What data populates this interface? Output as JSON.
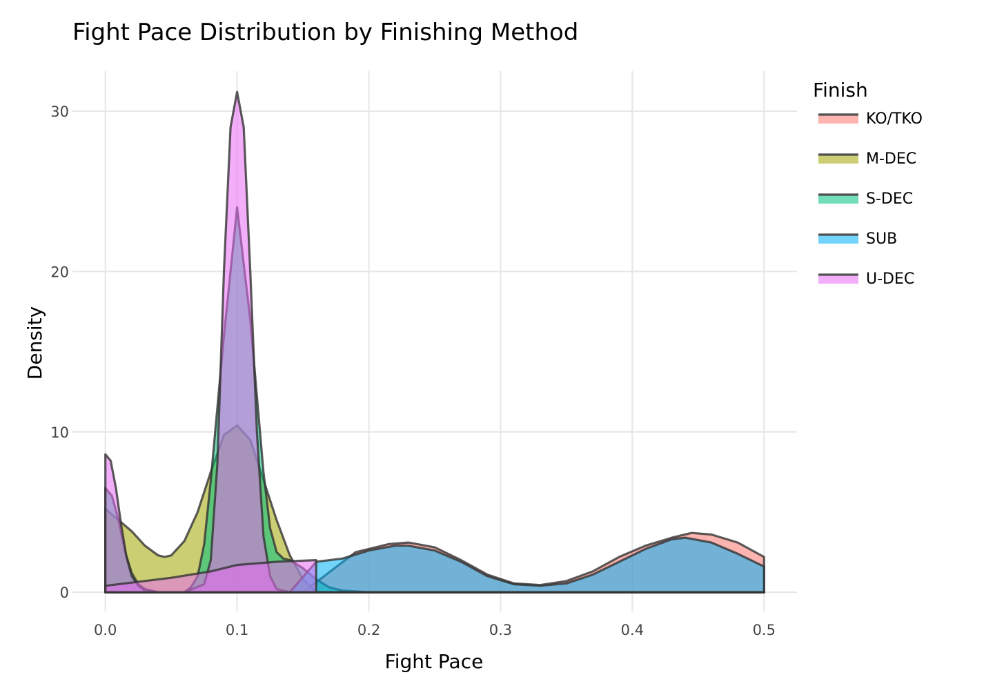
{
  "chart_data": {
    "type": "area",
    "title": "Fight Pace Distribution by Finishing Method",
    "xlabel": "Fight Pace",
    "ylabel": "Density",
    "xlim": [
      -0.025,
      0.525
    ],
    "ylim": [
      -1.2,
      32.5
    ],
    "x_ticks": [
      0,
      0.1,
      0.2,
      0.3,
      0.4,
      0.5
    ],
    "x_tick_labels": [
      "0.0",
      "0.1",
      "0.2",
      "0.3",
      "0.4",
      "0.5"
    ],
    "y_ticks": [
      0,
      10,
      20,
      30
    ],
    "y_tick_labels": [
      "0",
      "10",
      "20",
      "30"
    ],
    "grid": true,
    "legend": {
      "title": "Finish",
      "position": "right"
    },
    "series": [
      {
        "name": "KO/TKO",
        "color": "#F8766D",
        "x": [
          0,
          0.15,
          0.19,
          0.215,
          0.23,
          0.25,
          0.27,
          0.29,
          0.31,
          0.33,
          0.35,
          0.37,
          0.39,
          0.41,
          0.43,
          0.445,
          0.46,
          0.48,
          0.5
        ],
        "values": [
          0,
          0,
          2.5,
          3.0,
          3.1,
          2.8,
          2.0,
          1.1,
          0.55,
          0.45,
          0.7,
          1.3,
          2.2,
          2.9,
          3.4,
          3.7,
          3.6,
          3.1,
          2.2
        ]
      },
      {
        "name": "M-DEC",
        "color": "#A3A500",
        "x": [
          0,
          0.01,
          0.02,
          0.03,
          0.04,
          0.045,
          0.05,
          0.06,
          0.07,
          0.08,
          0.09,
          0.1,
          0.11,
          0.12,
          0.13,
          0.14,
          0.15,
          0.16,
          0.2,
          0.3,
          0.4,
          0.5
        ],
        "values": [
          5.2,
          4.5,
          3.8,
          2.9,
          2.3,
          2.2,
          2.3,
          3.2,
          5.0,
          7.5,
          9.8,
          10.4,
          9.5,
          7.0,
          4.5,
          2.3,
          0.8,
          0,
          0,
          0,
          0,
          0
        ]
      },
      {
        "name": "S-DEC",
        "color": "#00BF7D",
        "x": [
          0,
          0.005,
          0.01,
          0.015,
          0.02,
          0.025,
          0.03,
          0.04,
          0.06,
          0.065,
          0.07,
          0.075,
          0.08,
          0.09,
          0.1,
          0.11,
          0.12,
          0.125,
          0.13,
          0.135,
          0.14,
          0.15,
          0.16,
          0.17,
          0.18,
          0.2,
          0.3,
          0.4,
          0.5
        ],
        "values": [
          6.5,
          6.0,
          4.5,
          2.5,
          1.2,
          0.5,
          0.2,
          0,
          0,
          0.3,
          1.0,
          3.0,
          7.0,
          16.0,
          24.0,
          17.0,
          7.5,
          4.0,
          2.5,
          2.1,
          2.0,
          1.5,
          0.8,
          0.3,
          0.1,
          0,
          0,
          0,
          0
        ]
      },
      {
        "name": "SUB",
        "color": "#00B0F6",
        "x": [
          0,
          0.1,
          0.14,
          0.16,
          0.18,
          0.2,
          0.22,
          0.23,
          0.25,
          0.27,
          0.29,
          0.31,
          0.33,
          0.35,
          0.37,
          0.39,
          0.41,
          0.43,
          0.44,
          0.46,
          0.48,
          0.5
        ],
        "values": [
          0,
          0,
          0,
          1.9,
          2.1,
          2.6,
          2.9,
          2.9,
          2.6,
          1.9,
          1.0,
          0.5,
          0.4,
          0.55,
          1.1,
          1.9,
          2.7,
          3.3,
          3.4,
          3.1,
          2.4,
          1.6
        ]
      },
      {
        "name": "U-DEC",
        "color": "#E76BF3",
        "x": [
          0,
          0.004,
          0.008,
          0.012,
          0.016,
          0.02,
          0.025,
          0.03,
          0.04,
          0.06,
          0.075,
          0.08,
          0.085,
          0.09,
          0.095,
          0.1,
          0.105,
          0.11,
          0.115,
          0.12,
          0.125,
          0.13,
          0.14,
          0.2,
          0.3,
          0.4,
          0.5
        ],
        "values": [
          8.6,
          8.2,
          6.5,
          4.2,
          2.2,
          1.0,
          0.4,
          0.1,
          0,
          0,
          0.5,
          2.0,
          8.0,
          20.0,
          29.0,
          31.2,
          29.0,
          20.0,
          10.0,
          3.5,
          1.0,
          0.2,
          0,
          0,
          0,
          0,
          0
        ]
      }
    ],
    "overlays": [
      {
        "name": "U-DEC",
        "role": "broad component",
        "color": "#E76BF3",
        "x": [
          0,
          0.05,
          0.08,
          0.1,
          0.13,
          0.16
        ],
        "values": [
          0.4,
          0.9,
          1.3,
          1.7,
          1.9,
          2.0
        ]
      }
    ]
  }
}
